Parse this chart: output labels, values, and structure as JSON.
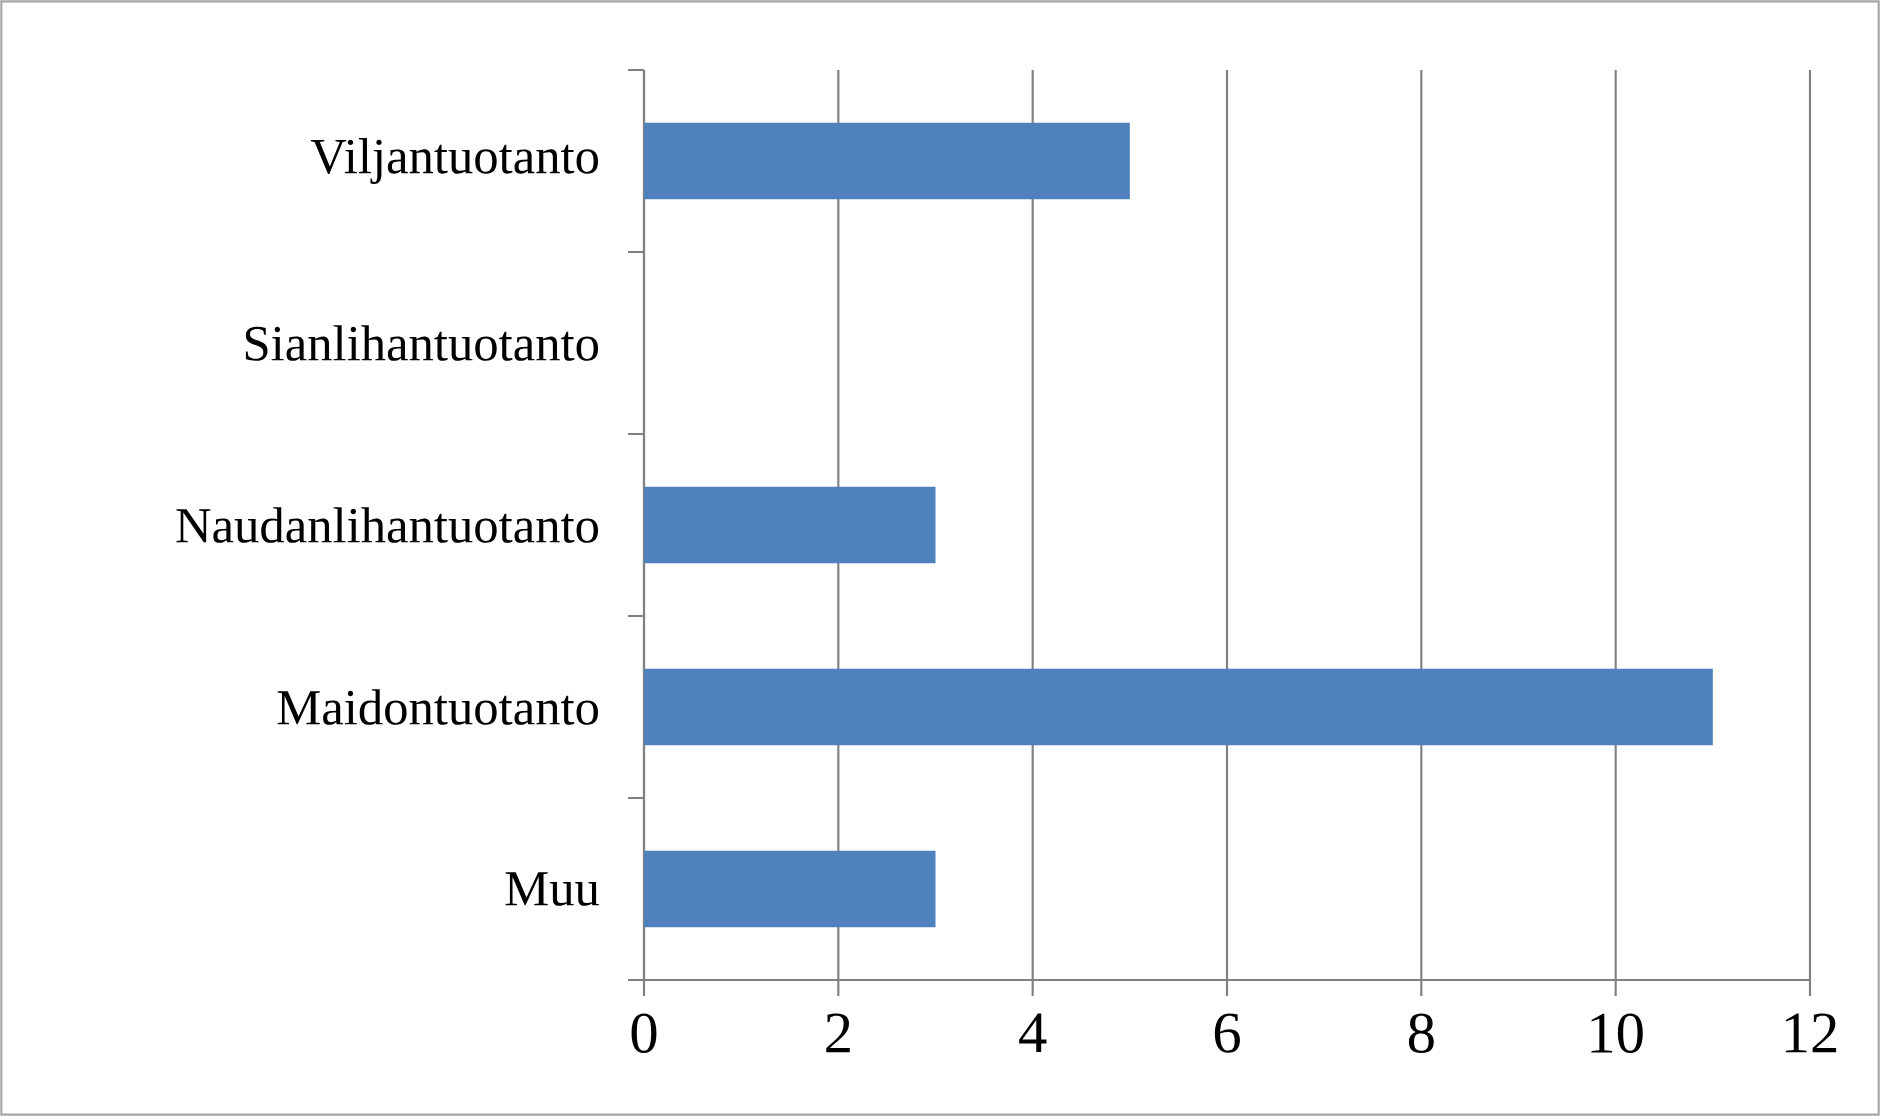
{
  "chart_data": {
    "type": "bar",
    "orientation": "horizontal",
    "categories": [
      "Viljantuotanto",
      "Sianlihantuotanto",
      "Naudanlihantuotanto",
      "Maidontuotanto",
      "Muu"
    ],
    "values": [
      5,
      0,
      3,
      11,
      3
    ],
    "color": "#4f81bd",
    "xlim": [
      0,
      12
    ],
    "xticks": [
      0,
      2,
      4,
      6,
      8,
      10,
      12
    ],
    "grid": "x"
  }
}
